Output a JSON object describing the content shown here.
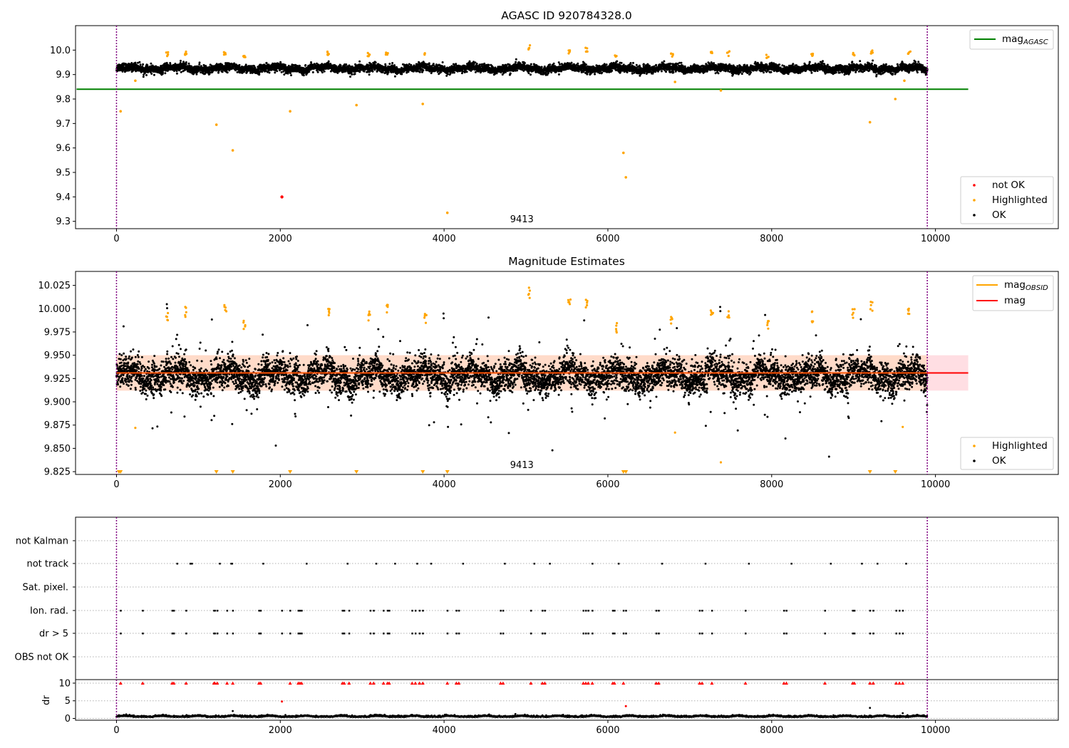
{
  "colors": {
    "ok": "#000000",
    "highlighted": "#ffa500",
    "not_ok": "#ff0000",
    "agasc_line": "#008000",
    "obsid_line": "#ffa500",
    "mag_line": "#ff0000",
    "mag_band": "#ffb6c1",
    "obsid_band": "#ffd8b0",
    "vline": "#800080",
    "grid": "#b0b0b0"
  },
  "chart_data": [
    {
      "type": "scatter",
      "title": "AGASC ID 920784328.0",
      "xlim": [
        -500,
        11500
      ],
      "ylim": [
        9.27,
        10.1
      ],
      "xticks": [
        "0",
        "2000",
        "4000",
        "6000",
        "8000",
        "10000"
      ],
      "yticks": [
        "9.3",
        "9.4",
        "9.5",
        "9.6",
        "9.7",
        "9.8",
        "9.9",
        "10.0"
      ],
      "obsid_annotation": "9413",
      "obsid_annotation_x": 4950,
      "vlines": [
        0,
        9900
      ],
      "mag_agasc": 9.84,
      "mag_agasc_xrange": [
        0,
        10400
      ],
      "ok_band": {
        "x_range": [
          0,
          9900
        ],
        "center": 9.925,
        "spread": 0.018
      },
      "legend_lines": [
        {
          "label": "mag",
          "subscript": "AGASC",
          "color_key": "agasc_line"
        }
      ],
      "legend_points": [
        {
          "label": "not OK",
          "color_key": "not_ok"
        },
        {
          "label": "Highlighted",
          "color_key": "highlighted"
        },
        {
          "label": "OK",
          "color_key": "ok"
        }
      ],
      "not_ok_points": [
        {
          "x": 2020,
          "y": 9.4
        }
      ],
      "highlighted_outliers": [
        {
          "x": 50,
          "y": 9.75
        },
        {
          "x": 230,
          "y": 9.875
        },
        {
          "x": 1220,
          "y": 9.695
        },
        {
          "x": 1420,
          "y": 9.59
        },
        {
          "x": 2120,
          "y": 9.75
        },
        {
          "x": 2930,
          "y": 9.775
        },
        {
          "x": 3740,
          "y": 9.78
        },
        {
          "x": 4040,
          "y": 9.335
        },
        {
          "x": 6190,
          "y": 9.58
        },
        {
          "x": 6220,
          "y": 9.48
        },
        {
          "x": 6820,
          "y": 9.87
        },
        {
          "x": 7380,
          "y": 9.835
        },
        {
          "x": 9200,
          "y": 9.705
        },
        {
          "x": 9510,
          "y": 9.8
        },
        {
          "x": 9620,
          "y": 9.875
        }
      ],
      "highlighted_peaks": [
        {
          "x": 620,
          "y": 9.995
        },
        {
          "x": 850,
          "y": 10.0
        },
        {
          "x": 1320,
          "y": 10.0
        },
        {
          "x": 1560,
          "y": 9.985
        },
        {
          "x": 2590,
          "y": 9.995
        },
        {
          "x": 3080,
          "y": 9.99
        },
        {
          "x": 3300,
          "y": 10.0
        },
        {
          "x": 3770,
          "y": 9.99
        },
        {
          "x": 5040,
          "y": 10.02
        },
        {
          "x": 5530,
          "y": 10.0
        },
        {
          "x": 5740,
          "y": 10.01
        },
        {
          "x": 6100,
          "y": 9.985
        },
        {
          "x": 6780,
          "y": 9.99
        },
        {
          "x": 7270,
          "y": 9.995
        },
        {
          "x": 7470,
          "y": 9.995
        },
        {
          "x": 7950,
          "y": 9.985
        },
        {
          "x": 8500,
          "y": 9.995
        },
        {
          "x": 9000,
          "y": 9.995
        },
        {
          "x": 9220,
          "y": 10.005
        },
        {
          "x": 9680,
          "y": 9.995
        }
      ]
    },
    {
      "type": "scatter",
      "title": "Magnitude Estimates",
      "xlim": [
        -500,
        11500
      ],
      "ylim": [
        9.822,
        10.04
      ],
      "xticks": [
        "0",
        "2000",
        "4000",
        "6000",
        "8000",
        "10000"
      ],
      "yticks": [
        "9.825",
        "9.850",
        "9.875",
        "9.900",
        "9.925",
        "9.950",
        "9.975",
        "10.000",
        "10.025"
      ],
      "obsid_annotation": "9413",
      "obsid_annotation_x": 4950,
      "vlines": [
        0,
        9900
      ],
      "mag": 9.931,
      "mag_band": [
        9.912,
        9.95
      ],
      "mag_xrange": [
        0,
        10400
      ],
      "obsid_band": [
        9.912,
        9.95
      ],
      "obsid_xrange": [
        0,
        9900
      ],
      "ok_band": {
        "x_range": [
          0,
          9900
        ],
        "center": 9.928,
        "spread": 0.018
      },
      "legend_lines": [
        {
          "label": "mag",
          "subscript": "OBSID",
          "color_key": "obsid_line"
        },
        {
          "label": "mag",
          "subscript": "",
          "color_key": "mag_line"
        }
      ],
      "legend_points": [
        {
          "label": "Highlighted",
          "color_key": "highlighted"
        },
        {
          "label": "OK",
          "color_key": "ok"
        }
      ],
      "highlighted_points": [
        {
          "x": 230,
          "y": 9.872
        },
        {
          "x": 6820,
          "y": 9.867
        },
        {
          "x": 7380,
          "y": 9.835
        },
        {
          "x": 9600,
          "y": 9.873
        },
        {
          "x": 620,
          "y": 9.997
        },
        {
          "x": 850,
          "y": 10.002
        },
        {
          "x": 1330,
          "y": 10.007
        },
        {
          "x": 1560,
          "y": 9.988
        },
        {
          "x": 2590,
          "y": 10.0
        },
        {
          "x": 3080,
          "y": 9.997
        },
        {
          "x": 3300,
          "y": 10.005
        },
        {
          "x": 3770,
          "y": 9.995
        },
        {
          "x": 5040,
          "y": 10.023
        },
        {
          "x": 5530,
          "y": 10.011
        },
        {
          "x": 5740,
          "y": 10.013
        },
        {
          "x": 6100,
          "y": 9.986
        },
        {
          "x": 6780,
          "y": 9.996
        },
        {
          "x": 7270,
          "y": 9.999
        },
        {
          "x": 7470,
          "y": 10.0
        },
        {
          "x": 7950,
          "y": 9.99
        },
        {
          "x": 8500,
          "y": 9.997
        },
        {
          "x": 9000,
          "y": 10.0
        },
        {
          "x": 9220,
          "y": 10.009
        },
        {
          "x": 9680,
          "y": 10.0
        }
      ],
      "offscale_markers": [
        30,
        50,
        1220,
        1420,
        2120,
        2930,
        3740,
        4040,
        6190,
        6220,
        9200,
        9510
      ]
    },
    {
      "type": "scatter",
      "title": "",
      "xlim": [
        -500,
        11500
      ],
      "xticks": [
        "0",
        "2000",
        "4000",
        "6000",
        "8000",
        "10000"
      ],
      "vlines": [
        0,
        9900
      ],
      "flag_rows": [
        "not Kalman",
        "not track",
        "Sat. pixel.",
        "Ion. rad.",
        "dr > 5",
        "OBS not OK"
      ],
      "flag_points": {
        "not Kalman": [],
        "not track": [
          740,
          900,
          920,
          1260,
          1400,
          1410,
          1790,
          2320,
          2820,
          3170,
          3400,
          3670,
          3840,
          4230,
          4740,
          5100,
          5290,
          5810,
          6130,
          6660,
          7190,
          7720,
          8240,
          8720,
          9100,
          9290,
          9640
        ],
        "Sat. pixel.": [],
        "Ion. rad.": [
          50,
          320,
          680,
          700,
          850,
          1190,
          1200,
          1230,
          1350,
          1420,
          1740,
          1760,
          2020,
          2120,
          2220,
          2240,
          2260,
          2760,
          2780,
          2840,
          3100,
          3140,
          3260,
          3310,
          3330,
          3610,
          3650,
          3700,
          3740,
          4040,
          4150,
          4180,
          4690,
          4720,
          5060,
          5200,
          5230,
          5700,
          5730,
          5760,
          5810,
          6060,
          6080,
          6190,
          6220,
          6590,
          6620,
          7120,
          7150,
          7270,
          7680,
          8150,
          8180,
          8650,
          8990,
          9010,
          9200,
          9240,
          9520,
          9560,
          9600
        ],
        "dr > 5": [
          50,
          320,
          680,
          700,
          850,
          1190,
          1200,
          1230,
          1350,
          1420,
          1740,
          1760,
          2020,
          2120,
          2220,
          2240,
          2260,
          2760,
          2780,
          2840,
          3100,
          3140,
          3260,
          3310,
          3330,
          3610,
          3650,
          3700,
          3740,
          4040,
          4150,
          4180,
          4690,
          4720,
          5060,
          5200,
          5230,
          5700,
          5730,
          5760,
          5810,
          6060,
          6080,
          6190,
          6220,
          6590,
          6620,
          7120,
          7150,
          7270,
          7680,
          8150,
          8180,
          8650,
          8990,
          9010,
          9200,
          9240,
          9520,
          9560,
          9600
        ],
        "OBS not OK": []
      }
    },
    {
      "type": "scatter",
      "title": "",
      "ylabel": "dr",
      "xlim": [
        -500,
        11500
      ],
      "ylim": [
        -0.5,
        11
      ],
      "xticks": [
        "0",
        "2000",
        "4000",
        "6000",
        "8000",
        "10000"
      ],
      "yticks": [
        "0",
        "5",
        "10"
      ],
      "vlines": [
        0,
        9900
      ],
      "ok_band": {
        "x_range": [
          0,
          9900
        ],
        "center": 0.4,
        "spread": 0.35
      },
      "capped_points_at_10": [
        50,
        320,
        680,
        700,
        850,
        1190,
        1200,
        1230,
        1350,
        1420,
        1740,
        1760,
        2120,
        2220,
        2240,
        2260,
        2760,
        2780,
        2840,
        3100,
        3140,
        3260,
        3310,
        3330,
        3610,
        3650,
        3700,
        3740,
        4040,
        4150,
        4180,
        4690,
        4720,
        5060,
        5200,
        5230,
        5700,
        5730,
        5760,
        5810,
        6060,
        6080,
        6190,
        6590,
        6620,
        7120,
        7150,
        7270,
        7680,
        8150,
        8180,
        8650,
        8990,
        9010,
        9200,
        9240,
        9520,
        9560,
        9600
      ],
      "red_points": [
        {
          "x": 2020,
          "y": 4.8
        },
        {
          "x": 6220,
          "y": 3.5
        }
      ],
      "black_points": [
        {
          "x": 1420,
          "y": 2.1
        },
        {
          "x": 9200,
          "y": 3.0
        },
        {
          "x": 9600,
          "y": 1.5
        }
      ]
    }
  ]
}
